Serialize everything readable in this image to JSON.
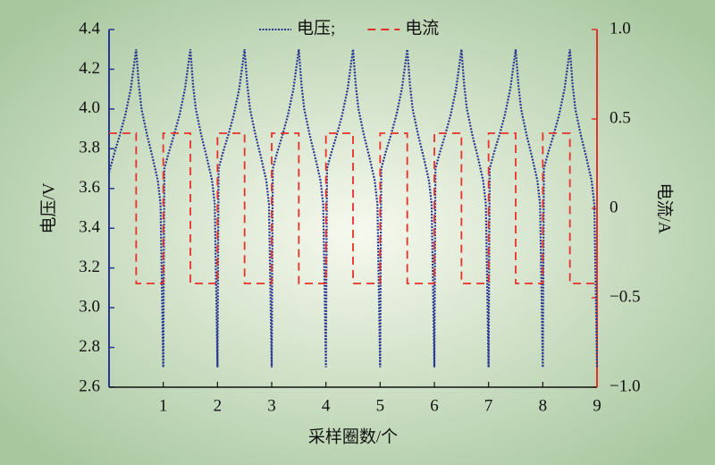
{
  "chart_data": {
    "type": "line",
    "xlabel": "采样圈数/个",
    "ylabel": "电压/V",
    "y2label": "电流/A",
    "xlim": [
      0,
      9
    ],
    "xticks": [
      1,
      2,
      3,
      4,
      5,
      6,
      7,
      8,
      9
    ],
    "ylim": [
      2.6,
      4.4
    ],
    "yticks": [
      2.6,
      2.8,
      {
        "value": 3,
        "label": "3.0"
      },
      3.2,
      3.4,
      3.6,
      3.8,
      {
        "value": 4,
        "label": "4.0"
      },
      4.2,
      4.4
    ],
    "y2lim": [
      -1,
      1
    ],
    "y2ticks": [
      {
        "value": -1,
        "label": "−1.0"
      },
      {
        "value": -0.5,
        "label": "−0.5"
      },
      0,
      0.5,
      {
        "value": 1,
        "label": "1.0"
      }
    ],
    "legend": "top",
    "series": [
      {
        "name": "电压;",
        "color": "#27368f",
        "style": "dotted",
        "x": [
          0,
          0.1,
          0.2,
          0.3,
          0.4,
          0.46,
          0.5,
          0.55,
          0.6,
          0.7,
          0.8,
          0.9,
          0.95,
          1,
          1.02,
          1.1,
          1.2,
          1.3,
          1.4,
          1.46,
          1.5,
          1.55,
          1.6,
          1.7,
          1.8,
          1.9,
          1.95,
          2,
          2.02,
          2.1,
          2.2,
          2.3,
          2.4,
          2.46,
          2.5,
          2.55,
          2.6,
          2.7,
          2.8,
          2.9,
          2.95,
          3,
          3.02,
          3.1,
          3.2,
          3.3,
          3.4,
          3.46,
          3.5,
          3.55,
          3.6,
          3.7,
          3.8,
          3.9,
          3.95,
          4,
          4.02,
          4.1,
          4.2,
          4.3,
          4.4,
          4.46,
          4.5,
          4.55,
          4.6,
          4.7,
          4.8,
          4.9,
          4.95,
          5,
          5.02,
          5.1,
          5.2,
          5.3,
          5.4,
          5.46,
          5.5,
          5.55,
          5.6,
          5.7,
          5.8,
          5.9,
          5.95,
          6,
          6.02,
          6.1,
          6.2,
          6.3,
          6.4,
          6.46,
          6.5,
          6.55,
          6.6,
          6.7,
          6.8,
          6.9,
          6.95,
          7,
          7.02,
          7.1,
          7.2,
          7.3,
          7.4,
          7.46,
          7.5,
          7.55,
          7.6,
          7.7,
          7.8,
          7.9,
          7.95,
          8,
          8.02,
          8.1,
          8.2,
          8.3,
          8.4,
          8.46,
          8.5,
          8.55,
          8.6,
          8.7,
          8.8,
          8.9,
          8.95,
          9
        ],
        "values": [
          3.68,
          3.78,
          3.87,
          3.97,
          4.1,
          4.22,
          4.3,
          4.12,
          4.0,
          3.87,
          3.76,
          3.64,
          3.52,
          2.7,
          3.7,
          3.78,
          3.87,
          3.97,
          4.1,
          4.22,
          4.3,
          4.12,
          4.0,
          3.87,
          3.76,
          3.64,
          3.52,
          2.7,
          3.7,
          3.78,
          3.87,
          3.97,
          4.1,
          4.22,
          4.3,
          4.12,
          4.0,
          3.87,
          3.76,
          3.64,
          3.52,
          2.7,
          3.7,
          3.78,
          3.87,
          3.97,
          4.1,
          4.22,
          4.3,
          4.12,
          4.0,
          3.87,
          3.76,
          3.64,
          3.52,
          2.7,
          3.7,
          3.78,
          3.87,
          3.97,
          4.1,
          4.22,
          4.3,
          4.12,
          4.0,
          3.87,
          3.76,
          3.64,
          3.52,
          2.7,
          3.7,
          3.78,
          3.87,
          3.97,
          4.1,
          4.22,
          4.3,
          4.12,
          4.0,
          3.87,
          3.76,
          3.64,
          3.52,
          2.7,
          3.7,
          3.78,
          3.87,
          3.97,
          4.1,
          4.22,
          4.3,
          4.12,
          4.0,
          3.87,
          3.76,
          3.64,
          3.52,
          2.7,
          3.7,
          3.78,
          3.87,
          3.97,
          4.1,
          4.22,
          4.3,
          4.12,
          4.0,
          3.87,
          3.76,
          3.64,
          3.52,
          2.7,
          3.7,
          3.78,
          3.87,
          3.97,
          4.1,
          4.22,
          4.3,
          4.12,
          4.0,
          3.87,
          3.76,
          3.64,
          3.52,
          2.7
        ]
      },
      {
        "name": "电流",
        "color": "#e8302a",
        "style": "dashed",
        "axis": "y2",
        "x": [
          0,
          0.5,
          0.5,
          1,
          1,
          1.5,
          1.5,
          2,
          2,
          2.5,
          2.5,
          3,
          3,
          3.5,
          3.5,
          4,
          4,
          4.5,
          4.5,
          5,
          5,
          5.5,
          5.5,
          6,
          6,
          6.5,
          6.5,
          7,
          7,
          7.5,
          7.5,
          8,
          8,
          8.5,
          8.5,
          9,
          9
        ],
        "values": [
          0.42,
          0.42,
          -0.42,
          -0.42,
          0.42,
          0.42,
          -0.42,
          -0.42,
          0.42,
          0.42,
          -0.42,
          -0.42,
          0.42,
          0.42,
          -0.42,
          -0.42,
          0.42,
          0.42,
          -0.42,
          -0.42,
          0.42,
          0.42,
          -0.42,
          -0.42,
          0.42,
          0.42,
          -0.42,
          -0.42,
          0.42,
          0.42,
          -0.42,
          -0.42,
          0.42,
          0.42,
          -0.42,
          -0.42,
          0.42
        ]
      }
    ]
  }
}
